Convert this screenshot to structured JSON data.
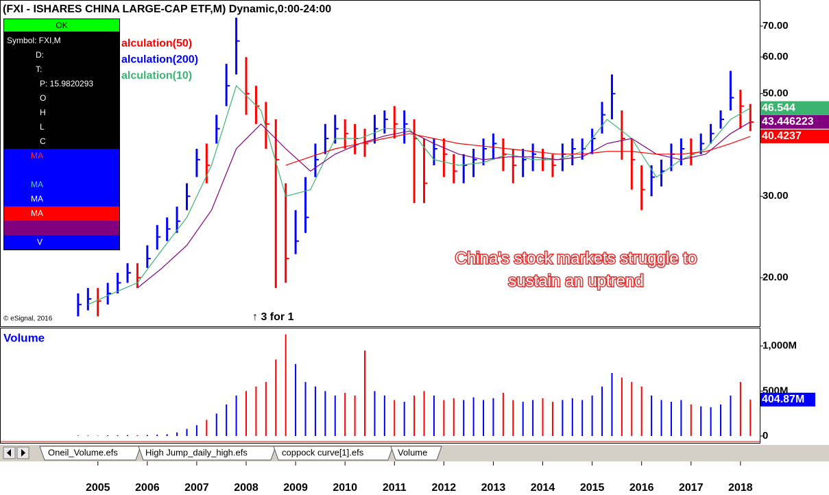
{
  "chart_data": {
    "type": "hlc_bar",
    "title": "(FXI - ISHARES CHINA LARGE-CAP ETF,M) Dynamic,0:00-24:00",
    "log_scale": true,
    "up_color": "#0000ff",
    "down_color": "#ff0000",
    "xlim": [
      2003.02,
      2018.39
    ],
    "xticks": [
      2005,
      2006,
      2007,
      2008,
      2009,
      2010,
      2011,
      2012,
      2013,
      2014,
      2015,
      2016,
      2017,
      2018
    ],
    "ylim": [
      15.7,
      79.7
    ],
    "yticks": [
      {
        "value": 70,
        "label": "70.00"
      },
      {
        "value": 60,
        "label": "60.00"
      },
      {
        "value": 50,
        "label": "50.00"
      },
      {
        "value": 30,
        "label": "30.00"
      },
      {
        "value": 20,
        "label": "20.00"
      }
    ],
    "x": [
      2004.6,
      2004.8,
      2005.0,
      2005.2,
      2005.4,
      2005.6,
      2005.8,
      2006.0,
      2006.2,
      2006.4,
      2006.6,
      2006.8,
      2007.0,
      2007.2,
      2007.4,
      2007.6,
      2007.8,
      2008.0,
      2008.2,
      2008.4,
      2008.6,
      2008.8,
      2009.0,
      2009.2,
      2009.4,
      2009.6,
      2009.8,
      2010.0,
      2010.2,
      2010.4,
      2010.6,
      2010.8,
      2011.0,
      2011.2,
      2011.4,
      2011.6,
      2011.8,
      2012.0,
      2012.2,
      2012.4,
      2012.6,
      2012.8,
      2013.0,
      2013.2,
      2013.4,
      2013.6,
      2013.8,
      2014.0,
      2014.2,
      2014.4,
      2014.6,
      2014.8,
      2015.0,
      2015.2,
      2015.4,
      2015.6,
      2015.8,
      2016.0,
      2016.2,
      2016.4,
      2016.6,
      2016.8,
      2017.0,
      2017.2,
      2017.4,
      2017.6,
      2017.8,
      2018.0,
      2018.2
    ],
    "high": [
      18.5,
      19,
      19,
      19.5,
      20.5,
      21.5,
      21.5,
      23.5,
      26,
      27,
      28.5,
      32,
      38,
      39,
      45,
      58,
      73,
      60,
      52,
      48,
      44,
      32,
      28,
      33,
      39,
      43,
      45,
      44,
      43,
      42,
      45,
      46,
      47,
      46,
      44,
      40,
      40,
      40,
      37,
      37,
      38,
      40,
      41,
      40,
      38,
      38,
      39,
      38,
      37,
      39,
      40,
      40,
      42,
      48,
      55,
      46,
      40,
      35,
      35,
      36,
      39,
      40,
      40,
      41,
      43,
      46,
      56,
      51,
      47.5
    ],
    "low": [
      16.5,
      17,
      16.5,
      17.5,
      18.5,
      19.5,
      19,
      21,
      23,
      24,
      25,
      28,
      33,
      32,
      39,
      47,
      55,
      45,
      43,
      38,
      19,
      19.5,
      22.5,
      25,
      33,
      37,
      39,
      38,
      37,
      36.5,
      39,
      41,
      40,
      39,
      29,
      29,
      35,
      33,
      32,
      32,
      33,
      35,
      36,
      34,
      32,
      33,
      34,
      34,
      33,
      34,
      35,
      36,
      37,
      41,
      44,
      36,
      31,
      28,
      30,
      31.5,
      34,
      35,
      35,
      37,
      39,
      42,
      46,
      42,
      41.5
    ],
    "close": [
      17.5,
      18,
      17.8,
      18.5,
      19.5,
      20.5,
      20,
      22,
      24.5,
      25.5,
      26.5,
      30,
      36,
      35,
      42,
      52,
      65,
      50,
      47,
      43,
      36,
      22,
      24,
      27,
      36,
      40,
      42,
      41,
      40,
      39,
      42,
      44,
      43,
      43,
      40,
      32,
      38,
      37,
      34,
      35,
      36,
      38,
      39,
      37,
      35,
      36,
      37,
      36,
      35,
      37,
      38,
      38,
      40,
      45,
      50,
      40,
      36,
      31,
      33,
      34,
      37,
      38,
      37,
      39,
      41,
      44,
      49,
      47,
      43.4
    ],
    "ma_series": [
      {
        "color": "#3cb371",
        "last_label": "46.544",
        "x": [
          2004.8,
          2005.3,
          2005.8,
          2006.3,
          2006.8,
          2007.3,
          2007.8,
          2008.3,
          2008.8,
          2009.3,
          2009.8,
          2010.3,
          2010.8,
          2011.3,
          2011.8,
          2012.3,
          2012.8,
          2013.3,
          2013.8,
          2014.3,
          2014.8,
          2015.3,
          2015.8,
          2016.3,
          2016.8,
          2017.3,
          2017.8,
          2018.2
        ],
        "values": [
          17.5,
          18.5,
          19.5,
          23,
          27,
          35,
          52,
          46,
          30,
          31,
          40,
          40,
          42,
          42,
          36,
          35,
          35.5,
          37,
          36,
          36,
          37.5,
          44,
          40,
          33,
          36,
          38,
          44,
          46.544
        ]
      },
      {
        "color": "#800080",
        "last_label": "43.446223",
        "x": [
          2005.8,
          2006.3,
          2006.8,
          2007.3,
          2007.8,
          2008.3,
          2008.8,
          2009.3,
          2009.8,
          2010.3,
          2010.8,
          2011.3,
          2011.8,
          2012.3,
          2012.8,
          2013.3,
          2013.8,
          2014.3,
          2014.8,
          2015.3,
          2015.8,
          2016.3,
          2016.8,
          2017.3,
          2017.8,
          2018.2
        ],
        "values": [
          19,
          21,
          23.5,
          28,
          38,
          43,
          38,
          34,
          37,
          39,
          40.5,
          41.5,
          39,
          37,
          36,
          36.5,
          36.5,
          36,
          36.5,
          39,
          40,
          37,
          36,
          37,
          41,
          43.446223
        ]
      },
      {
        "color": "#ff0000",
        "last_label": "40.4237",
        "x": [
          2008.8,
          2009.3,
          2009.8,
          2010.3,
          2010.8,
          2011.3,
          2011.8,
          2012.3,
          2012.8,
          2013.3,
          2013.8,
          2014.3,
          2014.8,
          2015.3,
          2015.8,
          2016.3,
          2016.8,
          2017.3,
          2017.8,
          2018.2
        ],
        "values": [
          35,
          36.5,
          38,
          39,
          40,
          41,
          40,
          39,
          38.5,
          38,
          37.5,
          37,
          37,
          37.5,
          37.5,
          37,
          37,
          37.5,
          39,
          40.4237
        ]
      }
    ],
    "studies": [
      {
        "text": "alculation(50)",
        "color": "#ff0000"
      },
      {
        "text": "alculation(200)",
        "color": "#0000ff"
      },
      {
        "text": "alculation(10)",
        "color": "#3cb371"
      }
    ],
    "annotations": [
      "China's stock markets struggle to",
      "sustain an uptrend"
    ],
    "split_note": "↑ 3 for 1",
    "copyright": "© eSignal, 2016",
    "volume": {
      "title": "Volume",
      "ylim": [
        0,
        1180
      ],
      "yticks": [
        {
          "value": 1000,
          "label": "1,000M"
        },
        {
          "value": 500,
          "label": "500M"
        },
        0
      ],
      "values": [
        5,
        5,
        5,
        8,
        8,
        10,
        10,
        12,
        15,
        20,
        40,
        80,
        120,
        180,
        250,
        350,
        450,
        500,
        550,
        600,
        850,
        1130,
        800,
        600,
        550,
        500,
        450,
        480,
        450,
        950,
        500,
        450,
        400,
        380,
        450,
        500,
        450,
        400,
        420,
        400,
        430,
        400,
        420,
        480,
        400,
        380,
        400,
        420,
        380,
        400,
        420,
        400,
        450,
        550,
        700,
        650,
        600,
        550,
        450,
        400,
        380,
        400,
        350,
        330,
        320,
        350,
        450,
        600,
        404.87
      ],
      "last_label": "404.87M"
    }
  },
  "info_panel": {
    "status": "OK",
    "rows": [
      "Symbol: FXI,M",
      "D:",
      "T:",
      "P: 15.9820293",
      "O",
      "H",
      "L",
      "C"
    ],
    "ma_rows": [
      "MA",
      "MA",
      "MA",
      "MA",
      "V"
    ]
  },
  "tabs": [
    "Oneil_Volume.efs",
    "High Jump_daily_high.efs",
    "coppock curve[1].efs",
    "Volume"
  ]
}
